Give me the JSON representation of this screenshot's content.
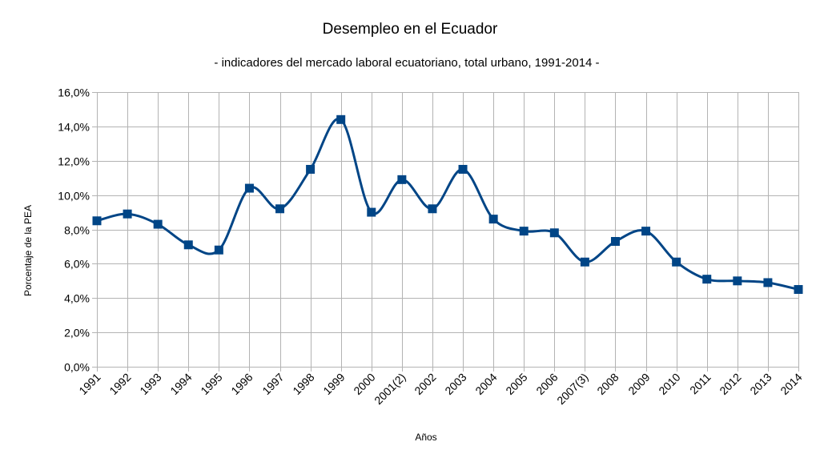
{
  "chart_data": {
    "type": "line",
    "title": "Desempleo en el Ecuador",
    "subtitle": "- indicadores del mercado laboral ecuatoriano, total urbano, 1991-2014 -",
    "xlabel": "Años",
    "ylabel": "Porcentaje de la PEA",
    "categories": [
      "1991",
      "1992",
      "1993",
      "1994",
      "1995",
      "1996",
      "1997",
      "1998",
      "1999",
      "2000",
      "2001(2)",
      "2002",
      "2003",
      "2004",
      "2005",
      "2006",
      "2007(3)",
      "2008",
      "2009",
      "2010",
      "2011",
      "2012",
      "2013",
      "2014"
    ],
    "series": [
      {
        "name": "Desempleo",
        "color": "#004586",
        "values": [
          8.5,
          8.9,
          8.3,
          7.1,
          6.8,
          10.4,
          9.2,
          11.5,
          14.4,
          9.0,
          10.9,
          9.2,
          11.5,
          8.6,
          7.9,
          7.8,
          6.1,
          7.3,
          7.9,
          6.1,
          5.1,
          5.0,
          4.9,
          4.5
        ]
      }
    ],
    "ylim": [
      0,
      16
    ],
    "yticks": [
      0,
      2,
      4,
      6,
      8,
      10,
      12,
      14,
      16
    ],
    "ytick_labels": [
      "0,0%",
      "2,0%",
      "4,0%",
      "6,0%",
      "8,0%",
      "10,0%",
      "12,0%",
      "14,0%",
      "16,0%"
    ],
    "grid": true,
    "legend": "none"
  }
}
